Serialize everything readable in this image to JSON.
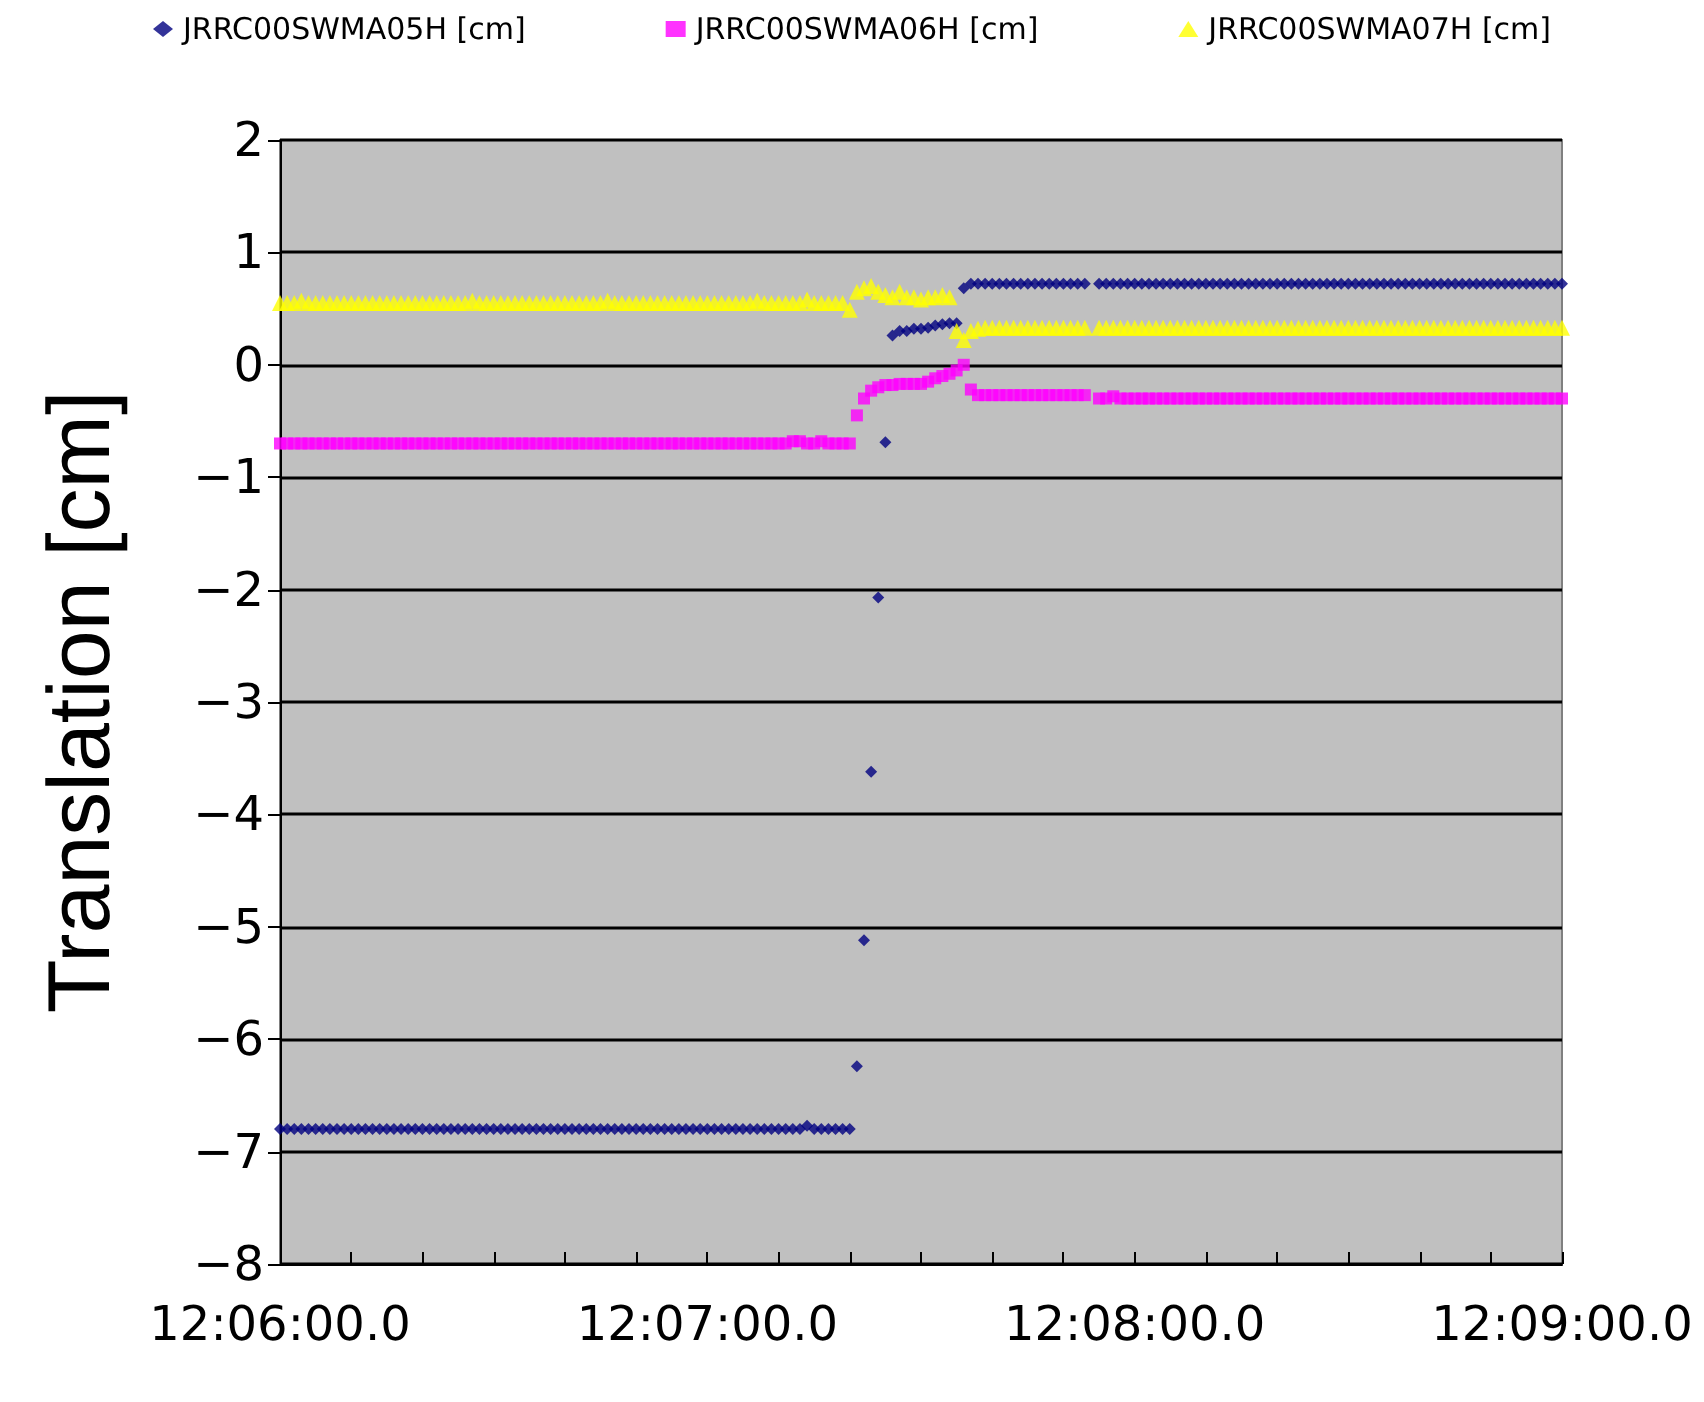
{
  "chart_data": {
    "type": "scatter",
    "ylabel": "Translation [cm]",
    "legend": "top",
    "grid": "y",
    "categories": [
      "12:06:00.0",
      null,
      null,
      null,
      null,
      null,
      null,
      null,
      null,
      null,
      null,
      null,
      null,
      null,
      null,
      null,
      null,
      null,
      null,
      null,
      null,
      null,
      null,
      null,
      null,
      null,
      null,
      null,
      null,
      null,
      null,
      null,
      null,
      null,
      null,
      null,
      null,
      null,
      null,
      null,
      null,
      null,
      null,
      null,
      null,
      null,
      null,
      null,
      null,
      null,
      null,
      null,
      null,
      null,
      null,
      null,
      null,
      null,
      null,
      null,
      "12:07:00.0",
      null,
      null,
      null,
      null,
      null,
      null,
      null,
      null,
      null,
      null,
      null,
      null,
      null,
      null,
      null,
      null,
      null,
      null,
      null,
      null,
      null,
      null,
      null,
      null,
      null,
      null,
      null,
      null,
      null,
      null,
      null,
      null,
      null,
      null,
      null,
      null,
      null,
      null,
      null,
      null,
      null,
      null,
      null,
      null,
      null,
      null,
      null,
      null,
      null,
      null,
      null,
      null,
      null,
      null,
      null,
      null,
      null,
      null,
      null,
      "12:08:00.0",
      null,
      null,
      null,
      null,
      null,
      null,
      null,
      null,
      null,
      null,
      null,
      null,
      null,
      null,
      null,
      null,
      null,
      null,
      null,
      null,
      null,
      null,
      null,
      null,
      null,
      null,
      null,
      null,
      null,
      null,
      null,
      null,
      null,
      null,
      null,
      null,
      null,
      null,
      null,
      null,
      null,
      null,
      null,
      null,
      null,
      null,
      null,
      null,
      null,
      null,
      null,
      null,
      null,
      null,
      null,
      null,
      null,
      null,
      null,
      "12:09:00.0"
    ],
    "series": [
      {
        "name": "JRRC00SWMA05H [cm]",
        "color": "#000080",
        "marker": "diamond",
        "values": [
          -6.8,
          -6.8,
          -6.8,
          -6.8,
          -6.8,
          -6.8,
          -6.8,
          -6.8,
          -6.8,
          -6.8,
          -6.8,
          -6.8,
          -6.8,
          -6.8,
          -6.8,
          -6.8,
          -6.8,
          -6.8,
          -6.8,
          -6.8,
          -6.8,
          -6.8,
          -6.8,
          -6.8,
          -6.8,
          -6.8,
          -6.8,
          -6.8,
          -6.8,
          -6.8,
          -6.8,
          -6.8,
          -6.8,
          -6.8,
          -6.8,
          -6.8,
          -6.8,
          -6.8,
          -6.8,
          -6.8,
          -6.8,
          -6.8,
          -6.8,
          -6.8,
          -6.8,
          -6.8,
          -6.8,
          -6.8,
          -6.8,
          -6.8,
          -6.8,
          -6.8,
          -6.8,
          -6.8,
          -6.8,
          -6.8,
          -6.8,
          -6.8,
          -6.8,
          -6.8,
          -6.8,
          -6.8,
          -6.8,
          -6.8,
          -6.8,
          -6.8,
          -6.8,
          -6.8,
          -6.8,
          -6.8,
          -6.8,
          -6.8,
          -6.8,
          -6.8,
          -6.77,
          -6.8,
          -6.8,
          -6.8,
          -6.8,
          -6.8,
          -6.8,
          -6.24,
          -5.12,
          -3.62,
          -2.07,
          -0.69,
          0.26,
          0.3,
          0.3,
          0.32,
          0.32,
          0.33,
          0.35,
          0.36,
          0.37,
          0.37,
          0.68,
          0.72,
          0.72,
          0.72,
          0.72,
          0.72,
          0.72,
          0.72,
          0.72,
          0.72,
          0.72,
          0.72,
          0.72,
          0.72,
          0.72,
          0.72,
          0.72,
          0.72,
          null,
          0.72,
          0.72,
          0.72,
          0.72,
          0.72,
          0.72,
          0.72,
          0.72,
          0.72,
          0.72,
          0.72,
          0.72,
          0.72,
          0.72,
          0.72,
          0.72,
          0.72,
          0.72,
          0.72,
          0.72,
          0.72,
          0.72,
          0.72,
          0.72,
          0.72,
          0.72,
          0.72,
          0.72,
          0.72,
          0.72,
          0.72,
          0.72,
          0.72,
          0.72,
          0.72,
          0.72,
          0.72,
          0.72,
          0.72,
          0.72,
          0.72,
          0.72,
          0.72,
          0.72,
          0.72,
          0.72,
          0.72,
          0.72,
          0.72,
          0.72,
          0.72,
          0.72,
          0.72,
          0.72,
          0.72,
          0.72,
          0.72,
          0.72,
          0.72,
          0.72,
          0.72,
          0.72,
          0.72,
          0.72,
          0.72,
          0.72
        ]
      },
      {
        "name": "JRRC00SWMA06H [cm]",
        "color": "#ff00ff",
        "marker": "square",
        "values": [
          -0.7,
          -0.7,
          -0.7,
          -0.7,
          -0.7,
          -0.7,
          -0.7,
          -0.7,
          -0.7,
          -0.7,
          -0.7,
          -0.7,
          -0.7,
          -0.7,
          -0.7,
          -0.7,
          -0.7,
          -0.7,
          -0.7,
          -0.7,
          -0.7,
          -0.7,
          -0.7,
          -0.7,
          -0.7,
          -0.7,
          -0.7,
          -0.7,
          -0.7,
          -0.7,
          -0.7,
          -0.7,
          -0.7,
          -0.7,
          -0.7,
          -0.7,
          -0.7,
          -0.7,
          -0.7,
          -0.7,
          -0.7,
          -0.7,
          -0.7,
          -0.7,
          -0.7,
          -0.7,
          -0.7,
          -0.7,
          -0.7,
          -0.7,
          -0.7,
          -0.7,
          -0.7,
          -0.7,
          -0.7,
          -0.7,
          -0.7,
          -0.7,
          -0.7,
          -0.7,
          -0.7,
          -0.7,
          -0.7,
          -0.7,
          -0.7,
          -0.7,
          -0.7,
          -0.7,
          -0.7,
          -0.7,
          -0.7,
          -0.7,
          -0.68,
          -0.68,
          -0.7,
          -0.7,
          -0.68,
          -0.7,
          -0.7,
          -0.7,
          -0.7,
          -0.45,
          -0.3,
          -0.23,
          -0.2,
          -0.18,
          -0.18,
          -0.17,
          -0.17,
          -0.17,
          -0.17,
          -0.15,
          -0.12,
          -0.1,
          -0.08,
          -0.05,
          0.0,
          -0.22,
          -0.27,
          -0.27,
          -0.27,
          -0.27,
          -0.27,
          -0.27,
          -0.27,
          -0.27,
          -0.27,
          -0.27,
          -0.27,
          -0.27,
          -0.27,
          -0.27,
          -0.27,
          -0.27,
          null,
          -0.3,
          -0.3,
          -0.28,
          -0.3,
          -0.3,
          -0.3,
          -0.3,
          -0.3,
          -0.3,
          -0.3,
          -0.3,
          -0.3,
          -0.3,
          -0.3,
          -0.3,
          -0.3,
          -0.3,
          -0.3,
          -0.3,
          -0.3,
          -0.3,
          -0.3,
          -0.3,
          -0.3,
          -0.3,
          -0.3,
          -0.3,
          -0.3,
          -0.3,
          -0.3,
          -0.3,
          -0.3,
          -0.3,
          -0.3,
          -0.3,
          -0.3,
          -0.3,
          -0.3,
          -0.3,
          -0.3,
          -0.3,
          -0.3,
          -0.3,
          -0.3,
          -0.3,
          -0.3,
          -0.3,
          -0.3,
          -0.3,
          -0.3,
          -0.3,
          -0.3,
          -0.3,
          -0.3,
          -0.3,
          -0.3,
          -0.3,
          -0.3,
          -0.3,
          -0.3,
          -0.3,
          -0.3,
          -0.3,
          -0.3,
          -0.3,
          -0.3
        ]
      },
      {
        "name": "JRRC00SWMA07H [cm]",
        "color": "#ffff00",
        "marker": "triangle",
        "values": [
          0.55,
          0.55,
          0.55,
          0.57,
          0.55,
          0.55,
          0.55,
          0.55,
          0.55,
          0.55,
          0.55,
          0.55,
          0.55,
          0.55,
          0.55,
          0.55,
          0.55,
          0.55,
          0.55,
          0.55,
          0.55,
          0.55,
          0.55,
          0.55,
          0.55,
          0.55,
          0.55,
          0.57,
          0.55,
          0.55,
          0.55,
          0.55,
          0.55,
          0.55,
          0.55,
          0.55,
          0.55,
          0.55,
          0.55,
          0.55,
          0.55,
          0.55,
          0.55,
          0.55,
          0.55,
          0.55,
          0.57,
          0.55,
          0.55,
          0.55,
          0.55,
          0.55,
          0.55,
          0.55,
          0.55,
          0.55,
          0.55,
          0.55,
          0.55,
          0.55,
          0.55,
          0.55,
          0.55,
          0.55,
          0.55,
          0.55,
          0.55,
          0.57,
          0.55,
          0.55,
          0.55,
          0.55,
          0.55,
          0.55,
          0.58,
          0.55,
          0.55,
          0.55,
          0.55,
          0.55,
          0.49,
          0.65,
          0.68,
          0.7,
          0.65,
          0.62,
          0.6,
          0.65,
          0.6,
          0.6,
          0.58,
          0.6,
          0.6,
          0.62,
          0.6,
          0.3,
          0.22,
          0.3,
          0.32,
          0.33,
          0.33,
          0.33,
          0.33,
          0.33,
          0.33,
          0.33,
          0.33,
          0.33,
          0.33,
          0.33,
          0.33,
          0.33,
          0.33,
          0.33,
          null,
          0.33,
          0.33,
          0.33,
          0.33,
          0.33,
          0.33,
          0.33,
          0.33,
          0.33,
          0.33,
          0.33,
          0.33,
          0.33,
          0.33,
          0.33,
          0.33,
          0.33,
          0.33,
          0.33,
          0.33,
          0.33,
          0.33,
          0.33,
          0.33,
          0.33,
          0.33,
          0.33,
          0.33,
          0.33,
          0.33,
          0.33,
          0.33,
          0.33,
          0.33,
          0.33,
          0.33,
          0.33,
          0.33,
          0.33,
          0.33,
          0.33,
          0.33,
          0.33,
          0.33,
          0.33,
          0.33,
          0.33,
          0.33,
          0.33,
          0.33,
          0.33,
          0.33,
          0.33,
          0.33,
          0.33,
          0.33,
          0.33,
          0.33,
          0.33,
          0.33,
          0.33,
          0.33,
          0.33,
          0.33,
          0.33,
          0.33
        ]
      }
    ],
    "ylim": [
      -8,
      2
    ],
    "yticks": [
      {
        "value": -8,
        "label": "−8"
      },
      {
        "value": -7,
        "label": "−7"
      },
      {
        "value": -6,
        "label": "−6"
      },
      {
        "value": -5,
        "label": "−5"
      },
      {
        "value": -4,
        "label": "−4"
      },
      {
        "value": -3,
        "label": "−3"
      },
      {
        "value": -2,
        "label": "−2"
      },
      {
        "value": -1,
        "label": "−1"
      },
      0,
      1,
      2
    ]
  }
}
